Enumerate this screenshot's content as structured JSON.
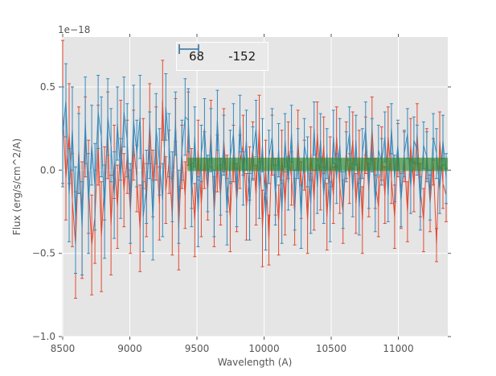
{
  "figure": {
    "bg": "#ffffff",
    "axes_bg": "#e5e5e5",
    "grid_color": "#ffffff",
    "tick_color": "#555555",
    "label_color": "#555555",
    "legend_bg": "#e9e9e9",
    "legend_border": "#ffffff",
    "legend_text_color": "#1a1a1a"
  },
  "chart_data": {
    "type": "line",
    "subtype": "errorbar-spectrum",
    "title": "",
    "xlabel": "Wavelength (A)",
    "ylabel": "Flux (erg/s/cm^2/A)",
    "y_offset_text": "1e−18",
    "value_scale": "1e-18",
    "xlim": [
      8494,
      11368
    ],
    "ylim": [
      -1.0,
      0.8
    ],
    "grid": true,
    "x_ticks": [
      8500,
      9000,
      9500,
      10000,
      10500,
      11000
    ],
    "x_tick_labels": [
      "8500",
      "9000",
      "9500",
      "10000",
      "10500",
      "11000"
    ],
    "y_ticks": [
      -1.0,
      -0.5,
      0.0,
      0.5
    ],
    "y_tick_labels": [
      "−1.0",
      "−0.5",
      "0.0",
      "0.5"
    ],
    "legend": {
      "position": "upper center",
      "entries": [
        {
          "label": "68",
          "color": "#e24a33"
        },
        {
          "label": "-152",
          "color": "#348abd"
        }
      ]
    },
    "band": {
      "x_start": 9430,
      "x_end": 11368,
      "y_low": -0.005,
      "y_high": 0.075,
      "color": "#2d872d",
      "opacity": 0.65
    },
    "x_start": 8500,
    "x_step": 24,
    "series": [
      {
        "name": "68",
        "color": "#e24a33",
        "values": [
          0.35,
          -0.05,
          0.22,
          -0.18,
          -0.45,
          0.12,
          -0.3,
          0.2,
          -0.1,
          -0.45,
          -0.28,
          0.15,
          -0.4,
          -0.08,
          0.21,
          -0.33,
          0.05,
          -0.22,
          0.18,
          -0.12,
          0.08,
          -0.25,
          0.15,
          -0.05,
          -0.35,
          0.1,
          -0.18,
          0.28,
          -0.08,
          0.16,
          -0.2,
          0.42,
          -0.12,
          0.05,
          -0.28,
          0.3,
          -0.35,
          0.08,
          -0.15,
          0.25,
          -0.05,
          -0.3,
          0.12,
          -0.2,
          0.06,
          -0.12,
          0.22,
          -0.25,
          0.04,
          -0.15,
          0.18,
          -0.08,
          -0.28,
          0.1,
          -0.18,
          0.05,
          0.15,
          -0.22,
          -0.02,
          0.12,
          -0.15,
          0.25,
          -0.35,
          0.02,
          -0.42,
          0.15,
          -0.1,
          -0.3,
          0.08,
          -0.2,
          0.12,
          -0.05,
          -0.25,
          0.18,
          -0.12,
          0.03,
          -0.3,
          0.1,
          -0.18,
          0.22,
          -0.08,
          0.15,
          -0.28,
          0.05,
          -0.15,
          0.2,
          -0.1,
          -0.25,
          0.12,
          -0.05,
          0.18,
          -0.2,
          0.08,
          -0.3,
          0.15,
          -0.12,
          0.25,
          -0.08,
          -0.22,
          0.1,
          -0.15,
          0.2,
          -0.05,
          -0.28,
          0.12,
          -0.18,
          0.08,
          -0.25,
          0.15,
          -0.1,
          0.22,
          -0.12,
          -0.3,
          0.1,
          -0.2,
          0.05,
          -0.45,
          0.18,
          -0.08,
          -0.15
        ],
        "yerr": [
          0.43,
          0.25,
          0.3,
          0.28,
          0.32,
          0.26,
          0.35,
          0.24,
          0.28,
          0.3,
          0.28,
          0.24,
          0.33,
          0.22,
          0.26,
          0.3,
          0.22,
          0.25,
          0.24,
          0.22,
          0.22,
          0.25,
          0.21,
          0.2,
          0.26,
          0.21,
          0.22,
          0.24,
          0.2,
          0.22,
          0.22,
          0.24,
          0.2,
          0.19,
          0.23,
          0.13,
          0.25,
          0.19,
          0.2,
          0.22,
          0.18,
          0.22,
          0.18,
          0.2,
          0.17,
          0.18,
          0.2,
          0.21,
          0.17,
          0.18,
          0.19,
          0.17,
          0.21,
          0.17,
          0.19,
          0.16,
          0.18,
          0.2,
          0.16,
          0.17,
          0.18,
          0.2,
          0.23,
          0.16,
          0.15,
          0.18,
          0.17,
          0.21,
          0.16,
          0.19,
          0.17,
          0.16,
          0.2,
          0.18,
          0.17,
          0.15,
          0.2,
          0.16,
          0.18,
          0.19,
          0.16,
          0.17,
          0.2,
          0.15,
          0.17,
          0.18,
          0.16,
          0.19,
          0.17,
          0.15,
          0.17,
          0.18,
          0.16,
          0.2,
          0.17,
          0.16,
          0.19,
          0.15,
          0.18,
          0.16,
          0.17,
          0.18,
          0.15,
          0.19,
          0.16,
          0.17,
          0.15,
          0.18,
          0.16,
          0.15,
          0.18,
          0.16,
          0.19,
          0.15,
          0.17,
          0.14,
          0.1,
          0.17,
          0.15,
          0.16
        ]
      },
      {
        "name": "-152",
        "color": "#348abd",
        "values": [
          0.2,
          0.42,
          -0.15,
          0.25,
          -0.3,
          0.1,
          -0.35,
          0.3,
          -0.2,
          0.15,
          -0.1,
          0.35,
          0.2,
          -0.25,
          0.32,
          0.15,
          -0.15,
          0.28,
          -0.05,
          0.35,
          0.18,
          -0.2,
          0.3,
          0.1,
          0.32,
          -0.28,
          -0.1,
          0.15,
          -0.3,
          0.25,
          0.05,
          -0.18,
          0.38,
          0.15,
          -0.1,
          0.28,
          -0.22,
          0.12,
          0.32,
          0.3,
          -0.15,
          0.2,
          -0.25,
          0.1,
          0.25,
          -0.08,
          0.18,
          -0.2,
          0.3,
          -0.1,
          0.15,
          -0.25,
          0.08,
          0.22,
          -0.15,
          0.28,
          -0.05,
          0.18,
          -0.22,
          0.1,
          0.25,
          -0.12,
          0.15,
          -0.28,
          0.08,
          0.2,
          -0.15,
          0.12,
          -0.25,
          0.18,
          -0.08,
          0.22,
          -0.18,
          0.1,
          -0.28,
          0.15,
          0.05,
          -0.2,
          0.25,
          -0.1,
          0.18,
          -0.15,
          0.1,
          -0.25,
          0.2,
          -0.05,
          0.15,
          -0.18,
          0.08,
          0.22,
          -0.12,
          0.18,
          -0.22,
          0.1,
          0.25,
          -0.08,
          0.15,
          -0.2,
          0.12,
          0.05,
          0.2,
          -0.15,
          0.25,
          -0.05,
          0.15,
          -0.18,
          0.1,
          0.22,
          -0.1,
          0.18,
          0.12,
          -0.2,
          0.15,
          0.08,
          -0.15,
          0.2,
          0.1,
          -0.12,
          0.18,
          -0.05
        ],
        "yerr": [
          0.3,
          0.22,
          0.28,
          0.25,
          0.32,
          0.24,
          0.28,
          0.26,
          0.3,
          0.24,
          0.26,
          0.22,
          0.24,
          0.28,
          0.23,
          0.22,
          0.26,
          0.22,
          0.24,
          0.21,
          0.22,
          0.24,
          0.21,
          0.2,
          0.25,
          0.21,
          0.22,
          0.2,
          0.24,
          0.21,
          0.2,
          0.22,
          0.2,
          0.19,
          0.21,
          0.19,
          0.22,
          0.18,
          0.23,
          0.19,
          0.19,
          0.18,
          0.21,
          0.17,
          0.18,
          0.17,
          0.19,
          0.2,
          0.18,
          0.17,
          0.18,
          0.2,
          0.16,
          0.18,
          0.19,
          0.17,
          0.16,
          0.18,
          0.2,
          0.16,
          0.17,
          0.17,
          0.16,
          0.2,
          0.16,
          0.17,
          0.18,
          0.16,
          0.19,
          0.16,
          0.16,
          0.17,
          0.18,
          0.15,
          0.19,
          0.16,
          0.15,
          0.18,
          0.16,
          0.16,
          0.16,
          0.17,
          0.15,
          0.18,
          0.16,
          0.15,
          0.16,
          0.17,
          0.15,
          0.16,
          0.16,
          0.15,
          0.17,
          0.15,
          0.16,
          0.15,
          0.16,
          0.17,
          0.15,
          0.14,
          0.15,
          0.16,
          0.15,
          0.14,
          0.15,
          0.16,
          0.14,
          0.15,
          0.16,
          0.14,
          0.15,
          0.16,
          0.14,
          0.15,
          0.15,
          0.14,
          0.15,
          0.14,
          0.15,
          0.15
        ]
      }
    ]
  }
}
